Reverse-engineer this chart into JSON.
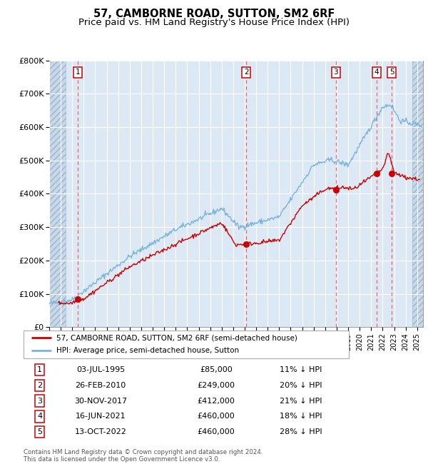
{
  "title": "57, CAMBORNE ROAD, SUTTON, SM2 6RF",
  "subtitle": "Price paid vs. HM Land Registry's House Price Index (HPI)",
  "ylim": [
    0,
    800000
  ],
  "yticks": [
    0,
    100000,
    200000,
    300000,
    400000,
    500000,
    600000,
    700000,
    800000
  ],
  "ytick_labels": [
    "£0",
    "£100K",
    "£200K",
    "£300K",
    "£400K",
    "£500K",
    "£600K",
    "£700K",
    "£800K"
  ],
  "xlim_start": 1993.0,
  "xlim_end": 2025.5,
  "hatch_left_end": 1994.42,
  "hatch_right_start": 2024.58,
  "background_color": "#dce9f5",
  "hatch_facecolor": "#c8d8ea",
  "grid_color": "#ffffff",
  "sales": [
    {
      "num": 1,
      "date_label": "03-JUL-1995",
      "year": 1995.5,
      "price": 85000,
      "pct": "11% ↓ HPI"
    },
    {
      "num": 2,
      "date_label": "26-FEB-2010",
      "year": 2010.15,
      "price": 249000,
      "pct": "20% ↓ HPI"
    },
    {
      "num": 3,
      "date_label": "30-NOV-2017",
      "year": 2017.92,
      "price": 412000,
      "pct": "21% ↓ HPI"
    },
    {
      "num": 4,
      "date_label": "16-JUN-2021",
      "year": 2021.46,
      "price": 460000,
      "pct": "18% ↓ HPI"
    },
    {
      "num": 5,
      "date_label": "13-OCT-2022",
      "year": 2022.79,
      "price": 460000,
      "pct": "28% ↓ HPI"
    }
  ],
  "hpi_color": "#7ab4d8",
  "price_color": "#cc0000",
  "vline_color": "#ff4444",
  "legend_label_price": "57, CAMBORNE ROAD, SUTTON, SM2 6RF (semi-detached house)",
  "legend_label_hpi": "HPI: Average price, semi-detached house, Sutton",
  "footer": "Contains HM Land Registry data © Crown copyright and database right 2024.\nThis data is licensed under the Open Government Licence v3.0.",
  "title_fontsize": 10.5,
  "subtitle_fontsize": 9.5
}
